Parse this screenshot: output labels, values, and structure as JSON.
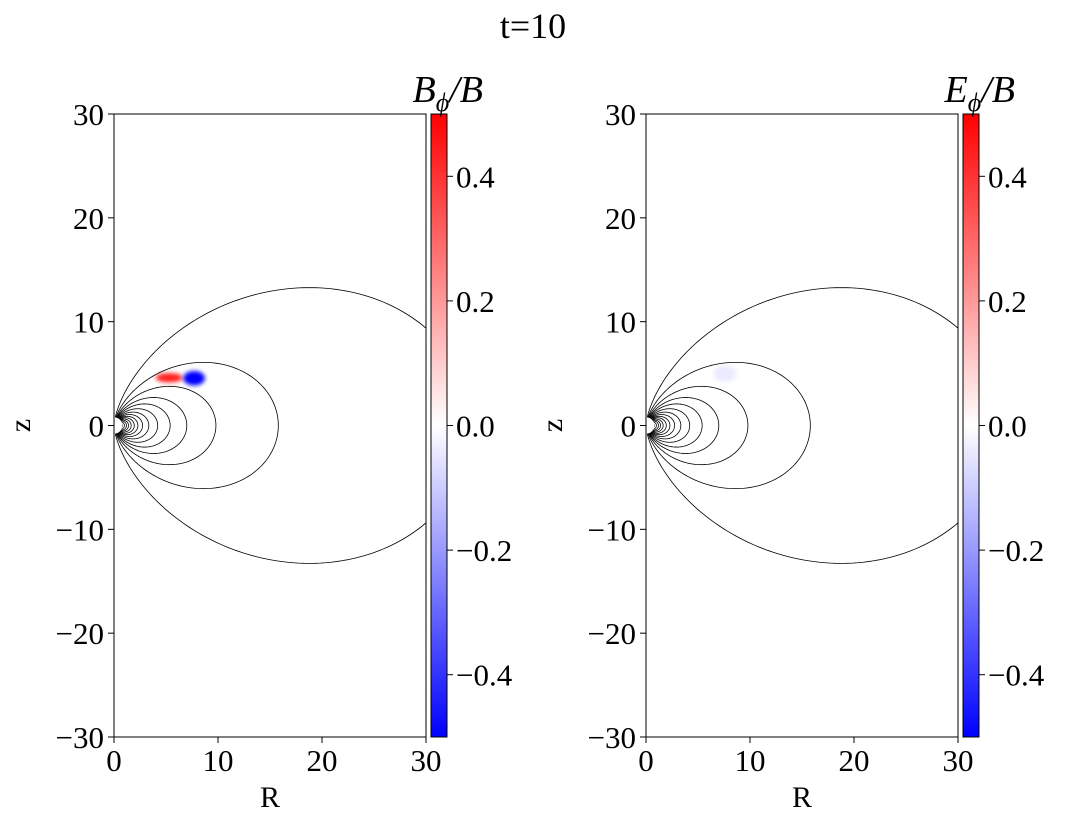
{
  "suptitle": "t=10",
  "chart_data": [
    {
      "type": "heatmap",
      "name": "bphi-panel",
      "colorbar_label": "B_ϕ/B",
      "colorbar_label_main": "B",
      "colorbar_label_sub": "ϕ",
      "colorbar_label_tail": "/B",
      "xlabel": "R",
      "ylabel": "z",
      "xlim": [
        0,
        30
      ],
      "ylim": [
        -30,
        30
      ],
      "xticks": [
        0,
        10,
        20,
        30
      ],
      "yticks": [
        -30,
        -20,
        -10,
        0,
        10,
        20,
        30
      ],
      "xtick_labels": [
        "0",
        "10",
        "20",
        "30"
      ],
      "ytick_labels": [
        "−30",
        "−20",
        "−10",
        "0",
        "10",
        "20",
        "30"
      ],
      "colorbar": {
        "range": [
          -0.5,
          0.5
        ],
        "ticks": [
          -0.4,
          -0.2,
          0.0,
          0.2,
          0.4
        ],
        "tick_labels": [
          "−0.4",
          "−0.2",
          "0.0",
          "0.2",
          "0.4"
        ],
        "colormap": "bwr",
        "colors": [
          "#0000ff",
          "#ffffff",
          "#ff0000"
        ]
      },
      "field_lines_equatorial_R": [
        0.8,
        1.0,
        1.2,
        1.4,
        1.65,
        1.95,
        2.3,
        2.75,
        3.35,
        4.2,
        5.4,
        7.0,
        9.8,
        15.8,
        34.5
      ],
      "blobs": [
        {
          "R": 5.3,
          "z": 4.6,
          "rR": 1.3,
          "rz": 0.45,
          "value": 0.45
        },
        {
          "R": 7.7,
          "z": 4.55,
          "rR": 1.05,
          "rz": 0.7,
          "value": -0.5
        }
      ]
    },
    {
      "type": "heatmap",
      "name": "ephi-panel",
      "colorbar_label": "E_ϕ/B",
      "colorbar_label_main": "E",
      "colorbar_label_sub": "ϕ",
      "colorbar_label_tail": "/B",
      "xlabel": "R",
      "ylabel": "z",
      "xlim": [
        0,
        30
      ],
      "ylim": [
        -30,
        30
      ],
      "xticks": [
        0,
        10,
        20,
        30
      ],
      "yticks": [
        -30,
        -20,
        -10,
        0,
        10,
        20,
        30
      ],
      "xtick_labels": [
        "0",
        "10",
        "20",
        "30"
      ],
      "ytick_labels": [
        "−30",
        "−20",
        "−10",
        "0",
        "10",
        "20",
        "30"
      ],
      "colorbar": {
        "range": [
          -0.5,
          0.5
        ],
        "ticks": [
          -0.4,
          -0.2,
          0.0,
          0.2,
          0.4
        ],
        "tick_labels": [
          "−0.4",
          "−0.2",
          "0.0",
          "0.2",
          "0.4"
        ],
        "colormap": "bwr",
        "colors": [
          "#0000ff",
          "#ffffff",
          "#ff0000"
        ]
      },
      "field_lines_equatorial_R": [
        0.8,
        1.0,
        1.2,
        1.4,
        1.65,
        1.95,
        2.3,
        2.75,
        3.35,
        4.2,
        5.4,
        7.0,
        9.8,
        15.8,
        34.5
      ],
      "blobs": [
        {
          "R": 7.6,
          "z": 5.0,
          "rR": 1.1,
          "rz": 0.8,
          "value": -0.04
        }
      ]
    }
  ]
}
